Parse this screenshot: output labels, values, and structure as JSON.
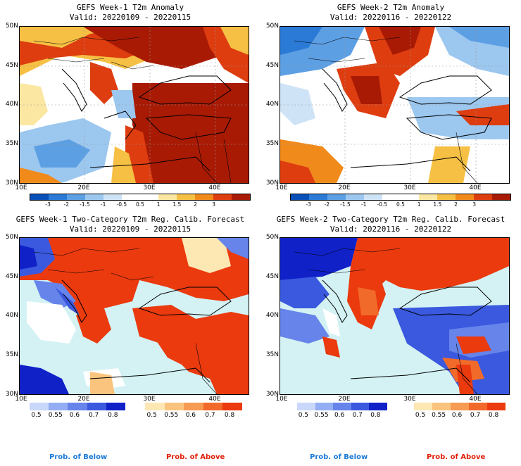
{
  "panels": [
    {
      "title": "GEFS Week-1 T2m Anomaly",
      "valid": "Valid: 20220109 - 20220115"
    },
    {
      "title": "GEFS Week-2 T2m Anomaly",
      "valid": "Valid: 20220116 - 20220122"
    },
    {
      "title": "GEFS Week-1 Two-Category T2m Reg. Calib. Forecast",
      "valid": "Valid: 20220109 - 20220115"
    },
    {
      "title": "GEFS Week-2 Two-Category T2m Reg. Calib. Forecast",
      "valid": "Valid: 20220116 - 20220122"
    }
  ],
  "lat_labels": [
    "50N",
    "45N",
    "40N",
    "35N",
    "30N"
  ],
  "lon_labels": [
    "10E",
    "20E",
    "30E",
    "40E"
  ],
  "anomaly_colorbar": {
    "labels": [
      "-3",
      "-2",
      "-1.5",
      "-1",
      "-0.5",
      "0.5",
      "1",
      "1.5",
      "2",
      "3"
    ],
    "colors": [
      "#0a4fb8",
      "#2a7ad6",
      "#5d9fe3",
      "#9cc7ef",
      "#cfe3f6",
      "#ffffff",
      "#ffffff",
      "#fbe7a1",
      "#f6c044",
      "#f08a1b",
      "#de3d10",
      "#a81a04"
    ]
  },
  "prob_below": {
    "labels": [
      "0.5",
      "0.55",
      "0.6",
      "0.7",
      "0.8"
    ],
    "colors": [
      "#c9d7fb",
      "#93aef5",
      "#6684ea",
      "#3a59de",
      "#1021c8"
    ],
    "caption": "Prob. of Below"
  },
  "prob_above": {
    "labels": [
      "0.5",
      "0.55",
      "0.6",
      "0.7",
      "0.8"
    ],
    "colors": [
      "#fde7b3",
      "#fbc47e",
      "#f79a52",
      "#f26a2a",
      "#ea3a0e"
    ],
    "caption": "Prob. of Above"
  },
  "sea_color": "#d4f2f4"
}
